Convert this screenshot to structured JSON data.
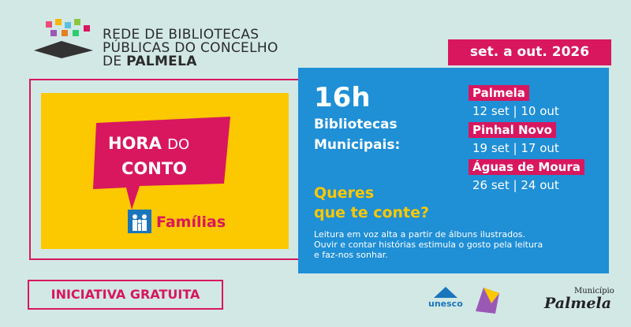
{
  "logo": {
    "lines": [
      "REDE DE BIBLIOTECAS",
      "PÚBLICAS DO CONCELHO",
      "DE",
      "PALMELA"
    ]
  },
  "dates_badge": "set. a out. 2026",
  "poster": {
    "bubble": [
      "HORA",
      "DO",
      "CONTO"
    ],
    "audience": "Famílias"
  },
  "info": {
    "time": "16h",
    "venue": [
      "Bibliotecas",
      "Municipais:"
    ],
    "question": [
      "Queres",
      "que te conte?"
    ],
    "places": [
      {
        "name": "Palmela",
        "dates": "12 set | 10 out"
      },
      {
        "name": "Pinhal Novo",
        "dates": "19 set | 17 out"
      },
      {
        "name": "Águas de Moura",
        "dates": "26 set | 24 out"
      }
    ],
    "description": [
      "Leitura em voz alta a partir de álbuns ilustrados.",
      "Ouvir e contar histórias estimula o gosto pela leitura",
      "e faz-nos sonhar."
    ]
  },
  "free": "INICIATIVA GRATUITA",
  "footer": {
    "unesco": "unesco",
    "municipio": "Município",
    "palmela": "Palmela"
  }
}
